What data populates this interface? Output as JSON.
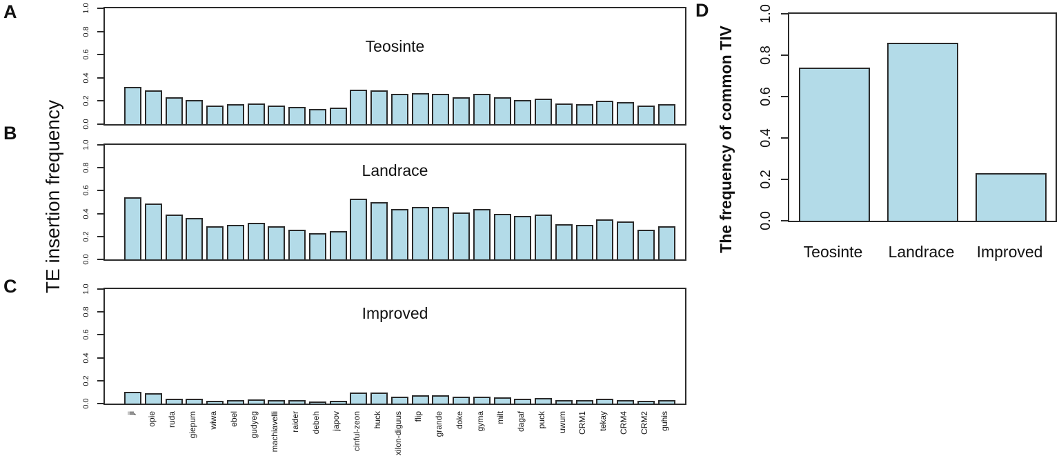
{
  "panels": {
    "a": {
      "letter": "A"
    },
    "b": {
      "letter": "B"
    },
    "c": {
      "letter": "C"
    },
    "d": {
      "letter": "D"
    }
  },
  "axes": {
    "abc_y_title": "TE insertion frequency",
    "d_y_title": "The frequency of common TIV",
    "y_tick_labels": [
      "0.0",
      "0.2",
      "0.4",
      "0.6",
      "0.8",
      "1.0"
    ]
  },
  "colors": {
    "bar_fill": "#b3dbe8",
    "bar_border": "#2a2a2a",
    "box_border": "#2b2b2b"
  },
  "chart_data": [
    {
      "type": "bar",
      "title": "TE insertion frequency per TE family (panels A, B, C)",
      "categories": [
        "ji",
        "opie",
        "ruda",
        "giepum",
        "wiwa",
        "ebel",
        "gudyeg",
        "machiavelli",
        "raider",
        "debeh",
        "japov",
        "cinful-zeon",
        "huck",
        "xilon-diguus",
        "flip",
        "grande",
        "doke",
        "gyma",
        "milt",
        "dagaf",
        "puck",
        "uwum",
        "CRM1",
        "tekay",
        "CRM4",
        "CRM2",
        "guhis"
      ],
      "series": [
        {
          "name": "Teosinte",
          "values": [
            0.32,
            0.29,
            0.23,
            0.21,
            0.16,
            0.17,
            0.18,
            0.16,
            0.15,
            0.13,
            0.14,
            0.3,
            0.29,
            0.26,
            0.27,
            0.26,
            0.23,
            0.26,
            0.23,
            0.21,
            0.22,
            0.18,
            0.17,
            0.2,
            0.19,
            0.16,
            0.17
          ]
        },
        {
          "name": "Landrace",
          "values": [
            0.54,
            0.49,
            0.39,
            0.36,
            0.29,
            0.3,
            0.32,
            0.29,
            0.26,
            0.23,
            0.25,
            0.53,
            0.5,
            0.44,
            0.46,
            0.46,
            0.41,
            0.44,
            0.4,
            0.38,
            0.39,
            0.31,
            0.3,
            0.35,
            0.33,
            0.26,
            0.29
          ]
        },
        {
          "name": "Improved",
          "values": [
            0.1,
            0.09,
            0.045,
            0.04,
            0.025,
            0.03,
            0.035,
            0.03,
            0.028,
            0.02,
            0.022,
            0.095,
            0.095,
            0.06,
            0.07,
            0.07,
            0.06,
            0.06,
            0.055,
            0.045,
            0.05,
            0.03,
            0.03,
            0.04,
            0.03,
            0.025,
            0.03
          ]
        }
      ],
      "ylabel": "TE insertion frequency",
      "ylim": [
        0,
        1
      ],
      "yticks": [
        0.0,
        0.2,
        0.4,
        0.6,
        0.8,
        1.0
      ],
      "grid": false,
      "legend": "none"
    },
    {
      "type": "bar",
      "title": "Frequency of common TIV (panel D)",
      "categories": [
        "Teosinte",
        "Landrace",
        "Improved"
      ],
      "values": [
        0.74,
        0.86,
        0.23
      ],
      "ylabel": "The frequency of common TIV",
      "ylim": [
        0,
        1
      ],
      "yticks": [
        0.0,
        0.2,
        0.4,
        0.6,
        0.8,
        1.0
      ],
      "grid": false,
      "legend": "none"
    }
  ]
}
